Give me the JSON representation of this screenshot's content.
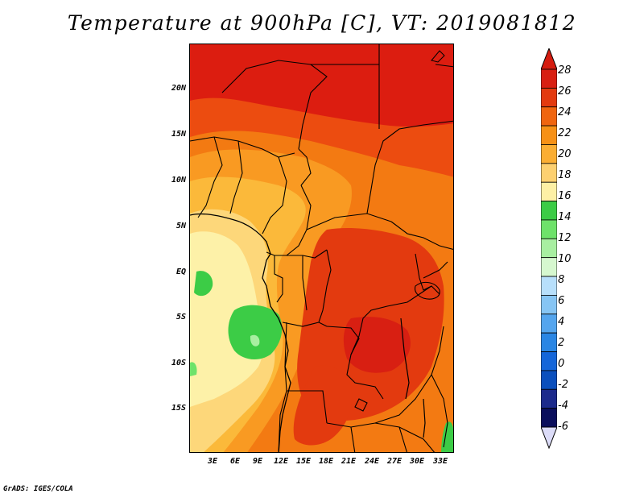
{
  "title": "Temperature at 900hPa [C], VT: 2019081812",
  "footer": "GrADS: IGES/COLA",
  "map": {
    "lat_labels": [
      "20N",
      "15N",
      "10N",
      "5N",
      "EQ",
      "5S",
      "10S",
      "15S"
    ],
    "lon_labels": [
      "3E",
      "6E",
      "9E",
      "12E",
      "15E",
      "18E",
      "21E",
      "24E",
      "27E",
      "30E",
      "33E"
    ],
    "lat_range": [
      -19,
      25
    ],
    "lon_range": [
      0,
      35
    ]
  },
  "colorbar": {
    "labels": [
      "28",
      "26",
      "24",
      "22",
      "20",
      "18",
      "16",
      "14",
      "12",
      "10",
      "8",
      "6",
      "4",
      "2",
      "0",
      "-2",
      "-4",
      "-6"
    ],
    "colors": [
      "#d81f12",
      "#e33a0f",
      "#f0650f",
      "#f79116",
      "#fbae33",
      "#fdd070",
      "#fdf0a5",
      "#3ccc46",
      "#6ee26a",
      "#a8efa1",
      "#d6f8cf",
      "#b7dffb",
      "#86c5f4",
      "#54a5ee",
      "#2a86e4",
      "#1566d9",
      "#0b4fbd",
      "#1c2a8c",
      "#0a0e5c"
    ],
    "cap_top": "#d51c10",
    "cap_bottom": "#dcdcf8"
  }
}
